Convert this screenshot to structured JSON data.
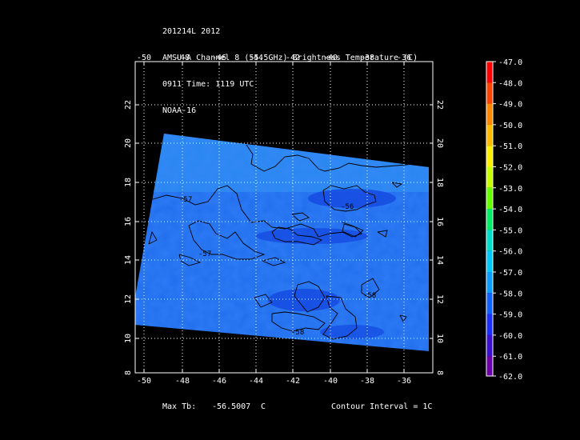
{
  "header": {
    "line1": "201214L 2012",
    "line2": "AMSU-A Channel 8 (55.5GHz) Brightness Temperature (C)",
    "line3": "0911 Time: 1119 UTC",
    "line4": "NOAA-16"
  },
  "map": {
    "lon_ticks": [
      "-50",
      "-48",
      "-46",
      "-44",
      "-42",
      "-40",
      "-38",
      "-36"
    ],
    "lat_ticks": [
      "8",
      "10",
      "12",
      "14",
      "16",
      "18",
      "20",
      "22"
    ],
    "lon_range": [
      -50.5,
      -34.5
    ],
    "lat_range": [
      8,
      24
    ],
    "grid": true,
    "contour_labels": [
      "-57",
      "-57",
      "-56",
      "-58",
      "-58"
    ]
  },
  "colorbar": {
    "labels": [
      "-47.0",
      "-48.0",
      "-49.0",
      "-50.0",
      "-51.0",
      "-52.0",
      "-53.0",
      "-54.0",
      "-55.0",
      "-56.0",
      "-57.0",
      "-58.0",
      "-59.0",
      "-60.0",
      "-61.0",
      "-62.0"
    ],
    "colors": [
      "#ff0000",
      "#ff4400",
      "#ff8800",
      "#ffbb00",
      "#ffee00",
      "#c8ff00",
      "#66ff00",
      "#00ee66",
      "#00ddcc",
      "#00c8ff",
      "#0a9cff",
      "#1060ff",
      "#1a2eff",
      "#3a10d0",
      "#6b00a8",
      "#f0f0ff"
    ]
  },
  "footer": {
    "max_label": "Max Tb:",
    "max_value": "-56.5007",
    "max_unit": "C",
    "contour": "Contour Interval = 1C"
  }
}
